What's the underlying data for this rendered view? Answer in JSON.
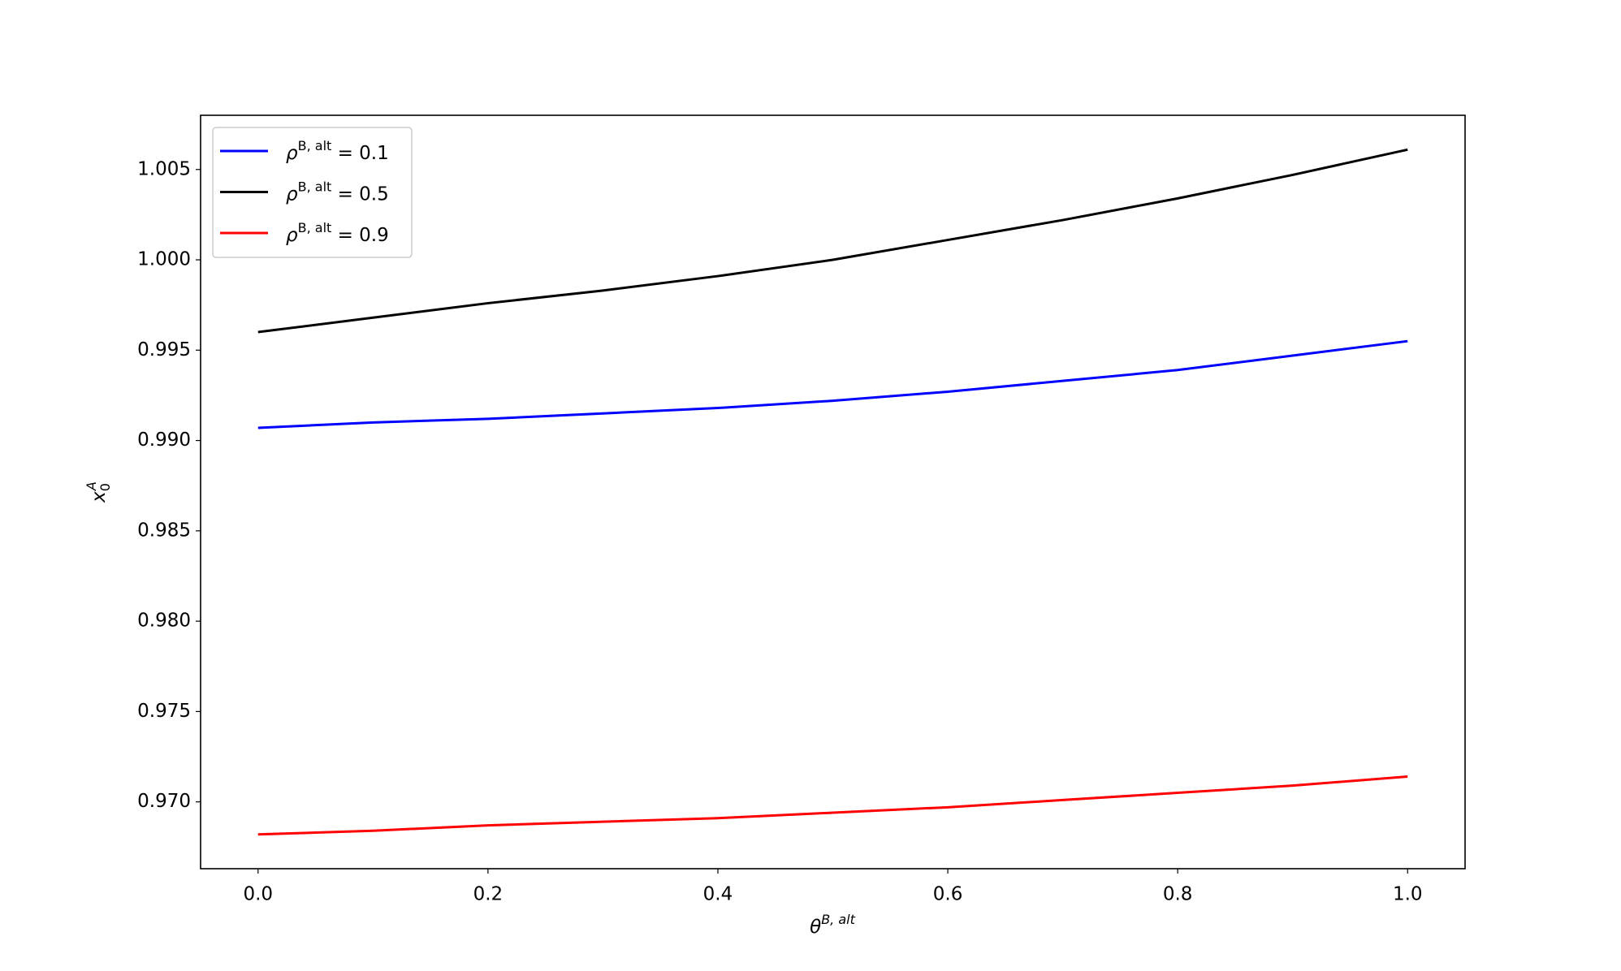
{
  "chart_data": {
    "type": "line",
    "x_label": "θB, alt",
    "y_label": "x0A",
    "x": [
      0,
      0.1,
      0.2,
      0.3,
      0.4,
      0.5,
      0.6,
      0.7,
      0.8,
      0.9,
      1
    ],
    "series": [
      {
        "name": "ρB, alt = 0.1",
        "color": "#0000ff",
        "values": [
          0.9907,
          0.991,
          0.9912,
          0.9915,
          0.9918,
          0.9922,
          0.9927,
          0.9933,
          0.9939,
          0.9947,
          0.9955
        ]
      },
      {
        "name": "ρB, alt = 0.5",
        "color": "#000000",
        "values": [
          0.996,
          0.9968,
          0.9976,
          0.9983,
          0.9991,
          1.0,
          1.0011,
          1.0022,
          1.0034,
          1.0047,
          1.0061
        ]
      },
      {
        "name": "ρB, alt = 0.9",
        "color": "#ff0000",
        "values": [
          0.9682,
          0.9684,
          0.9687,
          0.9689,
          0.9691,
          0.9694,
          0.9697,
          0.9701,
          0.9705,
          0.9709,
          0.9714
        ]
      }
    ],
    "xlim": [
      -0.05,
      1.05
    ],
    "ylim": [
      0.9663,
      1.008
    ],
    "xticks": [
      {
        "value": 0,
        "label": "0.0"
      },
      0.2,
      0.4,
      0.6,
      0.8,
      {
        "value": 1,
        "label": "1.0"
      }
    ],
    "yticks": [
      {
        "value": 0.97,
        "label": "0.970"
      },
      0.975,
      {
        "value": 0.98,
        "label": "0.980"
      },
      0.985,
      {
        "value": 0.99,
        "label": "0.990"
      },
      0.995,
      {
        "value": 1,
        "label": "1.000"
      },
      1.005
    ],
    "legend": "upper left",
    "grid": false
  }
}
